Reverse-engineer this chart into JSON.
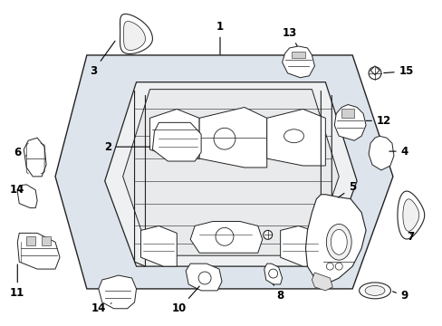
{
  "background_color": "#ffffff",
  "fig_width": 4.89,
  "fig_height": 3.6,
  "dpi": 100,
  "diagram_color": "#222222",
  "panel_fill": "#dde4ec",
  "part_fill": "#ffffff",
  "label_fontsize": 8.5
}
